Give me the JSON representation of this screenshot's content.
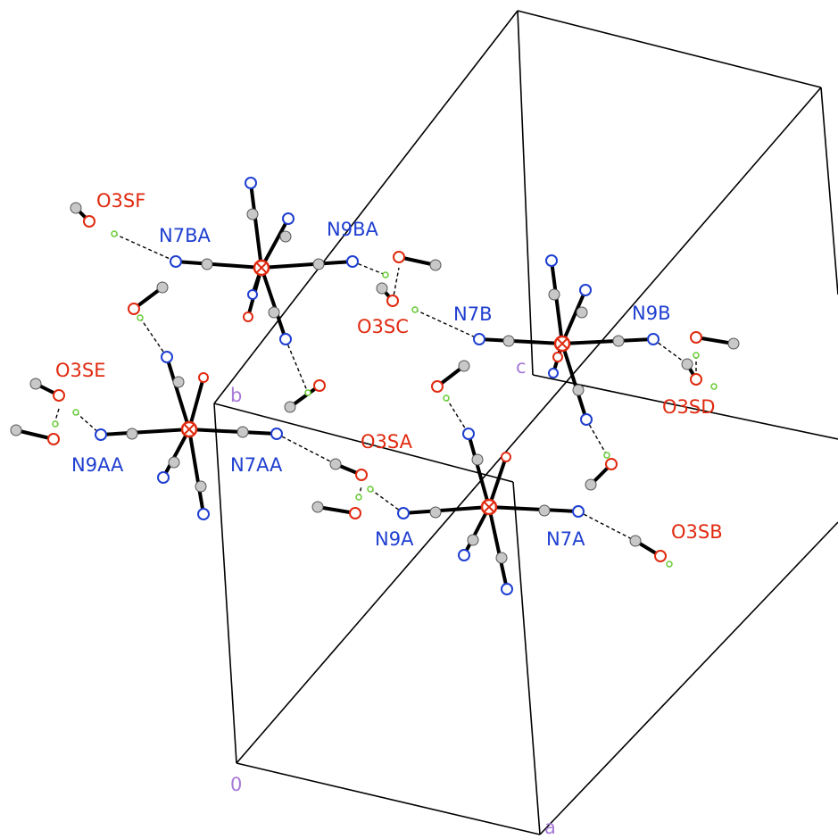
{
  "atom_labels": [
    "O3SF",
    "N7BA",
    "N9BA",
    "O3SC",
    "N7B",
    "N9B",
    "O3SD",
    "O3SE",
    "N9AA",
    "N7AA",
    "O3SA",
    "N9A",
    "N7A",
    "O3SB"
  ],
  "axis_labels": [
    "b",
    "c",
    "0",
    "a"
  ]
}
